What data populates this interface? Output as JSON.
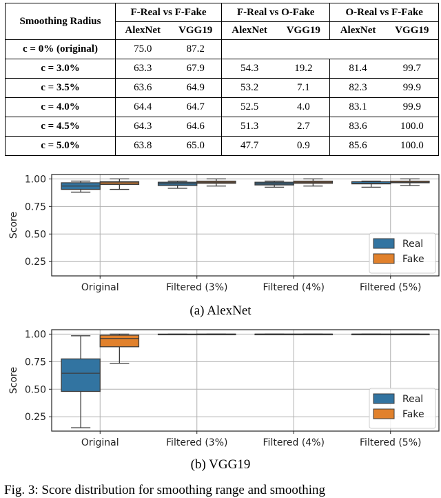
{
  "table": {
    "corner_header": "Smoothing Radius",
    "groups": [
      "F-Real vs F-Fake",
      "F-Real vs O-Fake",
      "O-Real vs F-Fake"
    ],
    "subheaders": [
      "AlexNet",
      "VGG19",
      "AlexNet",
      "VGG19",
      "AlexNet",
      "VGG19"
    ],
    "rows": [
      {
        "label": "c = 0% (original)",
        "values": [
          "75.0",
          "87.2",
          "",
          "",
          "",
          ""
        ]
      },
      {
        "label": "c = 3.0%",
        "values": [
          "63.3",
          "67.9",
          "54.3",
          "19.2",
          "81.4",
          "99.7"
        ]
      },
      {
        "label": "c = 3.5%",
        "values": [
          "63.6",
          "64.9",
          "53.2",
          "7.1",
          "82.3",
          "99.9"
        ]
      },
      {
        "label": "c = 4.0%",
        "values": [
          "64.4",
          "64.7",
          "52.5",
          "4.0",
          "83.1",
          "99.9"
        ]
      },
      {
        "label": "c = 4.5%",
        "values": [
          "64.3",
          "64.6",
          "51.3",
          "2.7",
          "83.6",
          "100.0"
        ]
      },
      {
        "label": "c = 5.0%",
        "values": [
          "63.8",
          "65.0",
          "47.7",
          "0.9",
          "85.6",
          "100.0"
        ]
      }
    ]
  },
  "captions": {
    "a": "(a)  AlexNet",
    "b": "(b)  VGG19",
    "figure": "Fig. 3: Score distribution for smoothing range and smoothing"
  },
  "colors": {
    "real": "#3274a1",
    "fake": "#e1812c",
    "line": "#3d3d3d",
    "grid": "#b0b0b0"
  },
  "chart_data": [
    {
      "type": "box",
      "title": "AlexNet",
      "xlabel": "",
      "ylabel": "Score",
      "ylim": [
        0.12,
        1.04
      ],
      "yticks": [
        0.25,
        0.5,
        0.75,
        1.0
      ],
      "ytick_labels": [
        "0.25",
        "0.50",
        "0.75",
        "1.00"
      ],
      "categories": [
        "Original",
        "Filtered (3%)",
        "Filtered (4%)",
        "Filtered (5%)"
      ],
      "legend": [
        "Real",
        "Fake"
      ],
      "legend_position": "lower right",
      "grid": true,
      "series": [
        {
          "name": "Real",
          "boxes": [
            {
              "whislo": 0.88,
              "q1": 0.905,
              "med": 0.935,
              "q3": 0.965,
              "whishi": 0.98
            },
            {
              "whislo": 0.915,
              "q1": 0.94,
              "med": 0.955,
              "q3": 0.97,
              "whishi": 0.98
            },
            {
              "whislo": 0.925,
              "q1": 0.945,
              "med": 0.955,
              "q3": 0.97,
              "whishi": 0.98
            },
            {
              "whislo": 0.925,
              "q1": 0.955,
              "med": 0.96,
              "q3": 0.975,
              "whishi": 0.98
            }
          ]
        },
        {
          "name": "Fake",
          "boxes": [
            {
              "whislo": 0.905,
              "q1": 0.95,
              "med": 0.965,
              "q3": 0.975,
              "whishi": 1.0
            },
            {
              "whislo": 0.935,
              "q1": 0.96,
              "med": 0.97,
              "q3": 0.98,
              "whishi": 1.0
            },
            {
              "whislo": 0.935,
              "q1": 0.96,
              "med": 0.97,
              "q3": 0.98,
              "whishi": 1.0
            },
            {
              "whislo": 0.94,
              "q1": 0.965,
              "med": 0.97,
              "q3": 0.98,
              "whishi": 1.0
            }
          ]
        }
      ]
    },
    {
      "type": "box",
      "title": "VGG19",
      "xlabel": "",
      "ylabel": "Score",
      "ylim": [
        0.12,
        1.04
      ],
      "yticks": [
        0.25,
        0.5,
        0.75,
        1.0
      ],
      "ytick_labels": [
        "0.25",
        "0.50",
        "0.75",
        "1.00"
      ],
      "categories": [
        "Original",
        "Filtered (3%)",
        "Filtered (4%)",
        "Filtered (5%)"
      ],
      "legend": [
        "Real",
        "Fake"
      ],
      "legend_position": "lower right",
      "grid": true,
      "series": [
        {
          "name": "Real",
          "boxes": [
            {
              "whislo": 0.15,
              "q1": 0.48,
              "med": 0.645,
              "q3": 0.775,
              "whishi": 0.985
            },
            {
              "whislo": 0.995,
              "q1": 0.997,
              "med": 0.998,
              "q3": 1.0,
              "whishi": 1.0
            },
            {
              "whislo": 1.0,
              "q1": 1.0,
              "med": 1.0,
              "q3": 1.0,
              "whishi": 1.0
            },
            {
              "whislo": 1.0,
              "q1": 1.0,
              "med": 1.0,
              "q3": 1.0,
              "whishi": 1.0
            }
          ]
        },
        {
          "name": "Fake",
          "boxes": [
            {
              "whislo": 0.735,
              "q1": 0.885,
              "med": 0.96,
              "q3": 0.99,
              "whishi": 1.0
            },
            {
              "whislo": 1.0,
              "q1": 1.0,
              "med": 1.0,
              "q3": 1.0,
              "whishi": 1.0
            },
            {
              "whislo": 1.0,
              "q1": 1.0,
              "med": 1.0,
              "q3": 1.0,
              "whishi": 1.0
            },
            {
              "whislo": 1.0,
              "q1": 1.0,
              "med": 1.0,
              "q3": 1.0,
              "whishi": 1.0
            }
          ]
        }
      ]
    }
  ]
}
